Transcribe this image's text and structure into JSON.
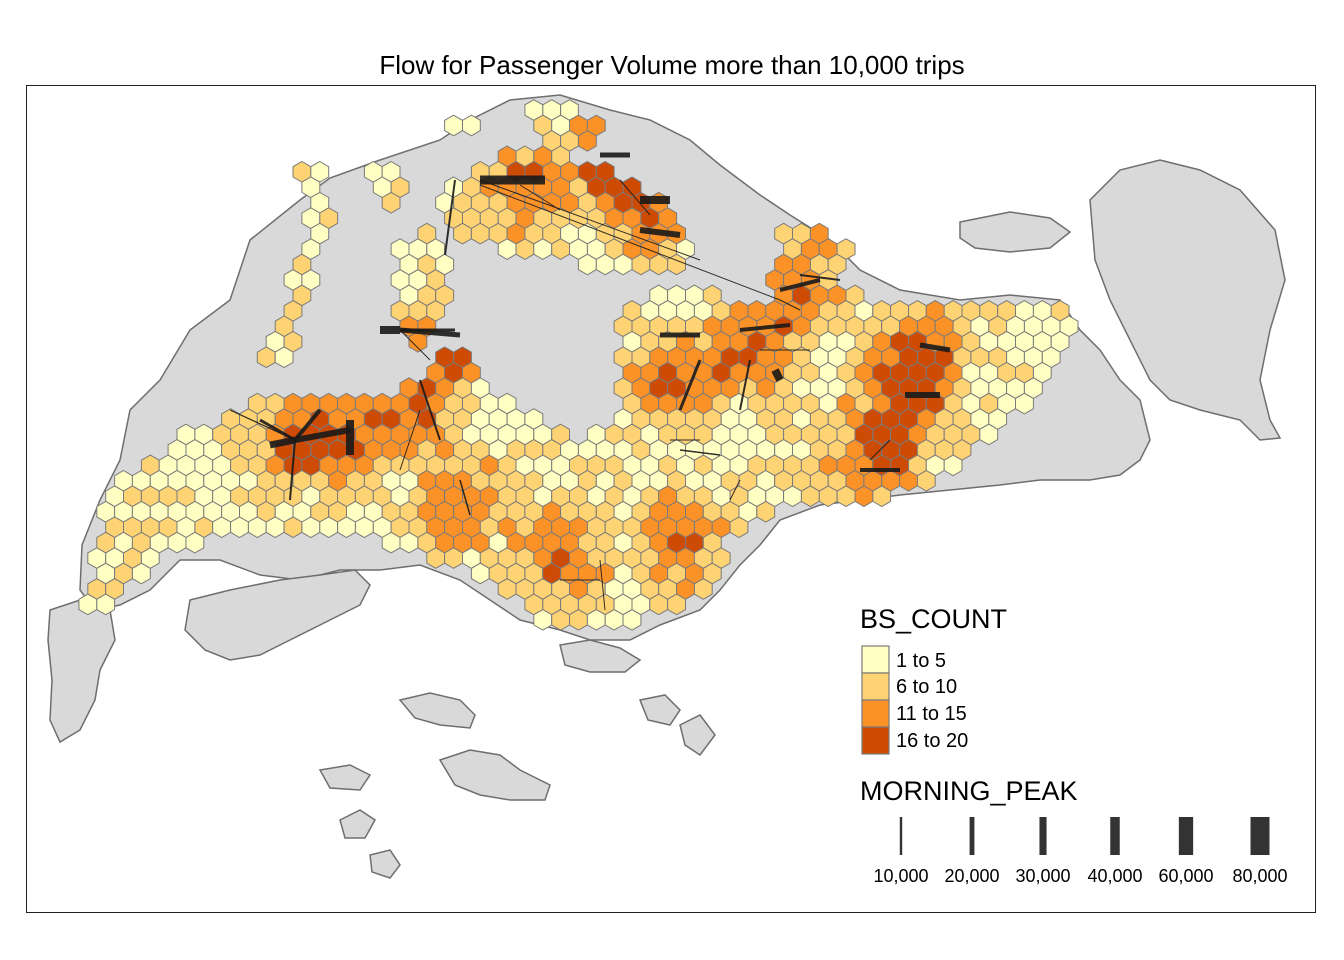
{
  "title": "Flow for Passenger Volume more than 10,000 trips",
  "colors": {
    "land": "#d9d9d9",
    "land_border": "#6e6e6e",
    "hex_border": "#7a7a7a",
    "flow": "#1a1a1a",
    "bs_1_5": "#ffffc4",
    "bs_6_10": "#fed374",
    "bs_11_15": "#fb9227",
    "bs_16_20": "#cd4b05"
  },
  "legend_bs": {
    "title": "BS_COUNT",
    "items": [
      {
        "label": "1 to 5",
        "color": "#ffffc4"
      },
      {
        "label": "6 to 10",
        "color": "#fed374"
      },
      {
        "label": "11 to 15",
        "color": "#fb9227"
      },
      {
        "label": "16 to 20",
        "color": "#cd4b05"
      }
    ]
  },
  "legend_flow": {
    "title": "MORNING_PEAK",
    "items": [
      {
        "label": "10,000",
        "value": 10000
      },
      {
        "label": "20,000",
        "value": 20000
      },
      {
        "label": "30,000",
        "value": 30000
      },
      {
        "label": "40,000",
        "value": 40000
      },
      {
        "label": "60,000",
        "value": 60000
      },
      {
        "label": "80,000",
        "value": 80000
      }
    ]
  }
}
